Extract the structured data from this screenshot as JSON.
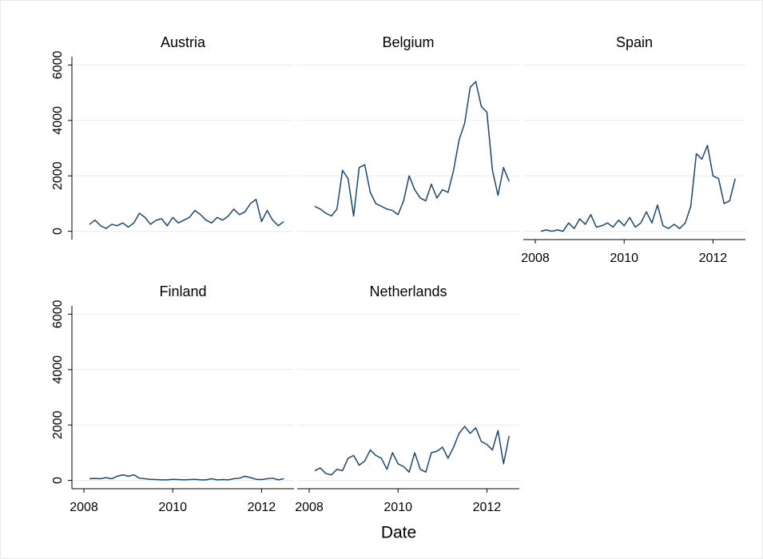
{
  "xlabel": "Date",
  "chart_data": [
    {
      "type": "line",
      "title": "Austria",
      "color": "#1a476f",
      "grid": true,
      "ytick_labels": true,
      "x": [
        2008.125,
        2008.25,
        2008.375,
        2008.5,
        2008.625,
        2008.75,
        2008.875,
        2009,
        2009.125,
        2009.25,
        2009.375,
        2009.5,
        2009.625,
        2009.75,
        2009.875,
        2010,
        2010.125,
        2010.25,
        2010.375,
        2010.5,
        2010.625,
        2010.75,
        2010.875,
        2011,
        2011.125,
        2011.25,
        2011.375,
        2011.5,
        2011.625,
        2011.75,
        2011.875,
        2012,
        2012.125,
        2012.25,
        2012.375,
        2012.5
      ],
      "values": [
        250,
        400,
        200,
        100,
        250,
        200,
        300,
        150,
        300,
        650,
        500,
        250,
        400,
        450,
        200,
        500,
        300,
        400,
        500,
        750,
        600,
        400,
        300,
        500,
        400,
        550,
        800,
        600,
        700,
        1000,
        1150,
        350,
        750,
        400,
        200,
        350
      ],
      "xlim": [
        2007.73,
        2012.73
      ],
      "ylim": [
        -300,
        6300
      ],
      "yticks": [
        0,
        2000,
        4000,
        6000
      ]
    },
    {
      "type": "line",
      "title": "Belgium",
      "color": "#1a476f",
      "grid": true,
      "ytick_labels": false,
      "x": [
        2008.125,
        2008.25,
        2008.375,
        2008.5,
        2008.625,
        2008.75,
        2008.875,
        2009,
        2009.125,
        2009.25,
        2009.375,
        2009.5,
        2009.625,
        2009.75,
        2009.875,
        2010,
        2010.125,
        2010.25,
        2010.375,
        2010.5,
        2010.625,
        2010.75,
        2010.875,
        2011,
        2011.125,
        2011.25,
        2011.375,
        2011.5,
        2011.625,
        2011.75,
        2011.875,
        2012,
        2012.125,
        2012.25,
        2012.375,
        2012.5
      ],
      "values": [
        900,
        800,
        650,
        550,
        800,
        2200,
        1900,
        550,
        2300,
        2400,
        1400,
        1000,
        900,
        800,
        750,
        600,
        1100,
        2000,
        1500,
        1200,
        1100,
        1700,
        1200,
        1500,
        1400,
        2200,
        3300,
        3900,
        5200,
        5400,
        4500,
        4300,
        2200,
        1300,
        2300,
        1800
      ],
      "xlim": [
        2007.73,
        2012.73
      ],
      "ylim": [
        -300,
        6300
      ],
      "yticks": [
        0,
        2000,
        4000,
        6000
      ]
    },
    {
      "type": "line",
      "title": "Spain",
      "color": "#1a476f",
      "grid": true,
      "ytick_labels": false,
      "x": [
        2008.125,
        2008.25,
        2008.375,
        2008.5,
        2008.625,
        2008.75,
        2008.875,
        2009,
        2009.125,
        2009.25,
        2009.375,
        2009.5,
        2009.625,
        2009.75,
        2009.875,
        2010,
        2010.125,
        2010.25,
        2010.375,
        2010.5,
        2010.625,
        2010.75,
        2010.875,
        2011,
        2011.125,
        2011.25,
        2011.375,
        2011.5,
        2011.625,
        2011.75,
        2011.875,
        2012,
        2012.125,
        2012.25,
        2012.375,
        2012.5
      ],
      "values": [
        0,
        50,
        0,
        50,
        0,
        300,
        100,
        450,
        250,
        600,
        150,
        200,
        300,
        150,
        400,
        200,
        500,
        150,
        300,
        700,
        300,
        950,
        200,
        100,
        250,
        100,
        300,
        900,
        2800,
        2600,
        3100,
        2000,
        1900,
        1000,
        1100,
        1900
      ],
      "xlim": [
        2007.73,
        2012.73
      ],
      "ylim": [
        -300,
        6300
      ],
      "yticks": [
        0,
        2000,
        4000,
        6000
      ],
      "xticks": [
        2008,
        2010,
        2012
      ]
    },
    {
      "type": "line",
      "title": "Finland",
      "color": "#1a476f",
      "grid": true,
      "ytick_labels": true,
      "x": [
        2008.125,
        2008.25,
        2008.375,
        2008.5,
        2008.625,
        2008.75,
        2008.875,
        2009,
        2009.125,
        2009.25,
        2009.375,
        2009.5,
        2009.625,
        2009.75,
        2009.875,
        2010,
        2010.125,
        2010.25,
        2010.375,
        2010.5,
        2010.625,
        2010.75,
        2010.875,
        2011,
        2011.125,
        2011.25,
        2011.375,
        2011.5,
        2011.625,
        2011.75,
        2011.875,
        2012,
        2012.125,
        2012.25,
        2012.375,
        2012.5
      ],
      "values": [
        60,
        70,
        60,
        100,
        60,
        150,
        200,
        150,
        200,
        80,
        60,
        40,
        30,
        20,
        20,
        40,
        30,
        20,
        30,
        40,
        20,
        20,
        60,
        20,
        30,
        20,
        60,
        80,
        150,
        100,
        40,
        30,
        60,
        80,
        20,
        60
      ],
      "xlim": [
        2007.73,
        2012.73
      ],
      "ylim": [
        -300,
        6300
      ],
      "yticks": [
        0,
        2000,
        4000,
        6000
      ],
      "xticks": [
        2008,
        2010,
        2012
      ]
    },
    {
      "type": "line",
      "title": "Netherlands",
      "color": "#1a476f",
      "grid": true,
      "ytick_labels": false,
      "x": [
        2008.125,
        2008.25,
        2008.375,
        2008.5,
        2008.625,
        2008.75,
        2008.875,
        2009,
        2009.125,
        2009.25,
        2009.375,
        2009.5,
        2009.625,
        2009.75,
        2009.875,
        2010,
        2010.125,
        2010.25,
        2010.375,
        2010.5,
        2010.625,
        2010.75,
        2010.875,
        2011,
        2011.125,
        2011.25,
        2011.375,
        2011.5,
        2011.625,
        2011.75,
        2011.875,
        2012,
        2012.125,
        2012.25,
        2012.375,
        2012.5
      ],
      "values": [
        350,
        450,
        250,
        200,
        400,
        350,
        800,
        900,
        550,
        700,
        1100,
        900,
        800,
        400,
        1000,
        600,
        500,
        300,
        1000,
        400,
        300,
        1000,
        1050,
        1200,
        800,
        1200,
        1700,
        1950,
        1700,
        1900,
        1400,
        1300,
        1100,
        1800,
        600,
        1600
      ],
      "xlim": [
        2007.73,
        2012.73
      ],
      "ylim": [
        -300,
        6300
      ],
      "yticks": [
        0,
        2000,
        4000,
        6000
      ],
      "xticks": [
        2008,
        2010,
        2012
      ]
    }
  ]
}
